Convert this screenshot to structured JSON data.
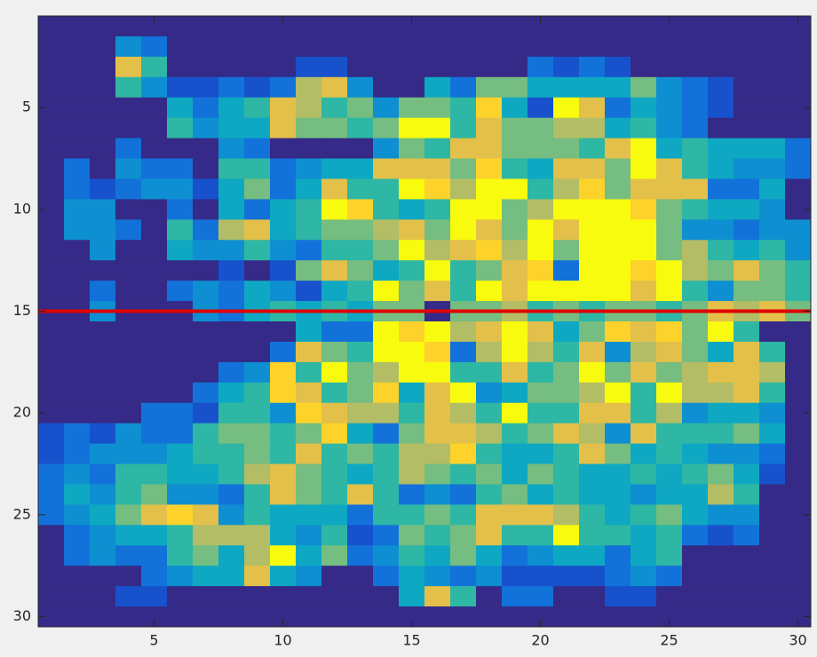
{
  "chart_data": {
    "type": "heatmap",
    "z": [
      [
        0,
        0,
        0,
        0,
        0,
        0,
        0,
        0,
        0,
        0,
        0,
        0,
        0,
        0,
        0,
        0,
        0,
        0,
        0,
        0,
        0,
        0,
        0,
        0,
        0,
        0,
        0,
        0,
        0,
        0
      ],
      [
        0,
        0,
        0,
        3,
        2,
        0,
        0,
        0,
        0,
        0,
        0,
        0,
        0,
        0,
        0,
        0,
        0,
        0,
        0,
        0,
        0,
        0,
        0,
        0,
        0,
        0,
        0,
        0,
        0,
        0
      ],
      [
        0,
        0,
        0,
        8,
        5,
        0,
        0,
        0,
        0,
        0,
        1,
        1,
        0,
        0,
        0,
        0,
        0,
        0,
        0,
        2,
        1,
        2,
        1,
        0,
        0,
        0,
        0,
        0,
        0,
        0
      ],
      [
        0,
        0,
        0,
        5,
        3,
        1,
        1,
        2,
        1,
        2,
        7,
        8,
        3,
        0,
        0,
        4,
        2,
        6,
        6,
        4,
        4,
        4,
        4,
        6,
        3,
        2,
        1,
        0,
        0,
        0
      ],
      [
        0,
        0,
        0,
        0,
        0,
        4,
        2,
        4,
        5,
        8,
        7,
        5,
        6,
        3,
        6,
        6,
        5,
        9,
        4,
        1,
        10,
        8,
        2,
        4,
        3,
        2,
        1,
        0,
        0,
        0
      ],
      [
        0,
        0,
        0,
        0,
        0,
        5,
        3,
        4,
        4,
        8,
        6,
        6,
        5,
        6,
        10,
        10,
        5,
        8,
        6,
        6,
        7,
        7,
        4,
        5,
        3,
        2,
        0,
        0,
        0,
        0
      ],
      [
        0,
        0,
        0,
        2,
        0,
        0,
        0,
        3,
        2,
        0,
        0,
        0,
        0,
        3,
        6,
        5,
        8,
        8,
        6,
        6,
        6,
        5,
        8,
        10,
        4,
        5,
        4,
        4,
        4,
        2
      ],
      [
        0,
        2,
        0,
        3,
        2,
        2,
        0,
        5,
        5,
        2,
        3,
        4,
        4,
        8,
        8,
        8,
        6,
        9,
        5,
        4,
        8,
        8,
        6,
        10,
        8,
        5,
        4,
        3,
        3,
        2
      ],
      [
        0,
        2,
        1,
        2,
        3,
        3,
        1,
        4,
        6,
        2,
        4,
        8,
        5,
        5,
        10,
        9,
        7,
        10,
        10,
        5,
        7,
        9,
        6,
        8,
        8,
        8,
        2,
        2,
        4,
        0
      ],
      [
        0,
        3,
        3,
        0,
        0,
        2,
        0,
        4,
        2,
        4,
        5,
        10,
        9,
        5,
        4,
        5,
        10,
        10,
        6,
        7,
        10,
        10,
        10,
        9,
        6,
        5,
        4,
        4,
        3,
        0
      ],
      [
        0,
        3,
        3,
        2,
        0,
        5,
        2,
        7,
        8,
        4,
        5,
        6,
        6,
        7,
        8,
        6,
        10,
        8,
        6,
        10,
        8,
        10,
        10,
        10,
        6,
        3,
        3,
        2,
        3,
        3
      ],
      [
        0,
        0,
        3,
        0,
        0,
        4,
        3,
        3,
        5,
        3,
        2,
        5,
        5,
        6,
        10,
        7,
        8,
        9,
        7,
        10,
        6,
        10,
        10,
        10,
        6,
        7,
        5,
        4,
        5,
        3
      ],
      [
        0,
        0,
        0,
        0,
        0,
        0,
        0,
        1,
        0,
        1,
        6,
        8,
        6,
        4,
        5,
        10,
        5,
        6,
        8,
        9,
        2,
        10,
        10,
        9,
        10,
        7,
        6,
        8,
        6,
        5
      ],
      [
        0,
        0,
        2,
        0,
        0,
        2,
        3,
        2,
        4,
        3,
        1,
        4,
        5,
        10,
        6,
        8,
        5,
        10,
        8,
        10,
        10,
        10,
        10,
        8,
        10,
        5,
        3,
        6,
        6,
        5
      ],
      [
        0,
        0,
        3,
        0,
        0,
        0,
        3,
        2,
        4,
        5,
        4,
        5,
        4,
        6,
        6,
        0,
        6,
        6,
        7,
        5,
        6,
        5,
        6,
        6,
        5,
        6,
        8,
        7,
        8,
        6
      ],
      [
        0,
        0,
        0,
        0,
        0,
        0,
        0,
        0,
        0,
        0,
        4,
        2,
        2,
        10,
        9,
        10,
        7,
        8,
        10,
        8,
        4,
        6,
        9,
        8,
        9,
        6,
        10,
        5,
        0,
        0
      ],
      [
        0,
        0,
        0,
        0,
        0,
        0,
        0,
        0,
        0,
        2,
        8,
        6,
        5,
        10,
        10,
        9,
        2,
        7,
        10,
        7,
        5,
        8,
        3,
        7,
        8,
        6,
        4,
        8,
        5,
        0
      ],
      [
        0,
        0,
        0,
        0,
        0,
        0,
        0,
        2,
        3,
        9,
        5,
        10,
        6,
        7,
        10,
        10,
        5,
        5,
        8,
        5,
        6,
        10,
        6,
        8,
        6,
        7,
        8,
        8,
        7,
        0
      ],
      [
        0,
        0,
        0,
        0,
        0,
        0,
        2,
        4,
        5,
        9,
        8,
        5,
        6,
        9,
        4,
        8,
        10,
        3,
        4,
        6,
        6,
        7,
        10,
        5,
        10,
        7,
        7,
        8,
        5,
        0
      ],
      [
        0,
        0,
        0,
        0,
        2,
        2,
        1,
        5,
        5,
        3,
        9,
        8,
        7,
        7,
        5,
        8,
        7,
        5,
        10,
        5,
        5,
        8,
        8,
        5,
        7,
        3,
        4,
        4,
        3,
        0
      ],
      [
        1,
        2,
        1,
        3,
        2,
        2,
        5,
        6,
        6,
        5,
        6,
        9,
        4,
        2,
        6,
        8,
        8,
        7,
        5,
        6,
        8,
        7,
        3,
        8,
        5,
        5,
        5,
        6,
        4,
        0
      ],
      [
        1,
        2,
        3,
        3,
        3,
        4,
        5,
        5,
        6,
        5,
        8,
        5,
        6,
        5,
        7,
        7,
        9,
        5,
        4,
        4,
        5,
        8,
        6,
        4,
        5,
        4,
        3,
        3,
        2,
        0
      ],
      [
        2,
        3,
        2,
        5,
        5,
        4,
        4,
        5,
        7,
        8,
        6,
        5,
        4,
        5,
        7,
        6,
        5,
        6,
        4,
        6,
        5,
        4,
        4,
        5,
        4,
        5,
        6,
        4,
        1,
        0
      ],
      [
        2,
        4,
        3,
        5,
        6,
        3,
        3,
        2,
        5,
        8,
        6,
        5,
        8,
        5,
        2,
        3,
        2,
        5,
        6,
        4,
        5,
        4,
        4,
        3,
        4,
        4,
        7,
        5,
        0,
        0
      ],
      [
        2,
        3,
        4,
        6,
        8,
        9,
        8,
        3,
        5,
        4,
        4,
        4,
        2,
        5,
        5,
        6,
        5,
        8,
        8,
        8,
        7,
        5,
        4,
        5,
        6,
        4,
        3,
        3,
        0,
        0
      ],
      [
        0,
        2,
        3,
        4,
        4,
        5,
        7,
        7,
        7,
        4,
        3,
        5,
        1,
        2,
        6,
        5,
        6,
        8,
        5,
        5,
        10,
        5,
        5,
        4,
        5,
        2,
        1,
        2,
        0,
        0
      ],
      [
        0,
        2,
        3,
        2,
        2,
        5,
        6,
        4,
        7,
        10,
        4,
        6,
        2,
        3,
        5,
        4,
        6,
        4,
        2,
        3,
        4,
        4,
        2,
        4,
        5,
        0,
        0,
        0,
        0,
        0
      ],
      [
        0,
        0,
        0,
        0,
        2,
        3,
        4,
        4,
        8,
        4,
        3,
        0,
        0,
        2,
        4,
        3,
        2,
        3,
        1,
        1,
        1,
        1,
        2,
        3,
        2,
        0,
        0,
        0,
        0,
        0
      ],
      [
        0,
        0,
        0,
        1,
        1,
        0,
        0,
        0,
        0,
        0,
        0,
        0,
        0,
        0,
        4,
        8,
        5,
        0,
        2,
        2,
        0,
        0,
        1,
        1,
        0,
        0,
        0,
        0,
        0,
        0
      ],
      [
        0,
        0,
        0,
        0,
        0,
        0,
        0,
        0,
        0,
        0,
        0,
        0,
        0,
        0,
        0,
        0,
        0,
        0,
        0,
        0,
        0,
        0,
        0,
        0,
        0,
        0,
        0,
        0,
        0,
        0
      ]
    ],
    "xlim": [
      0.5,
      30.5
    ],
    "ylim": [
      0.5,
      30.5
    ],
    "yreverse": true,
    "xticks": [
      5,
      10,
      15,
      20,
      25,
      30
    ],
    "yticks": [
      5,
      10,
      15,
      20,
      25,
      30
    ],
    "clim": [
      0,
      10
    ],
    "colormap": [
      "#352a87",
      "#0f5cdd",
      "#1481d6",
      "#06a4ca",
      "#2eb7a4",
      "#87bf77",
      "#d1bb59",
      "#fec832",
      "#f9fb0e"
    ],
    "hline": {
      "value": 15,
      "color": "#e00000"
    }
  }
}
